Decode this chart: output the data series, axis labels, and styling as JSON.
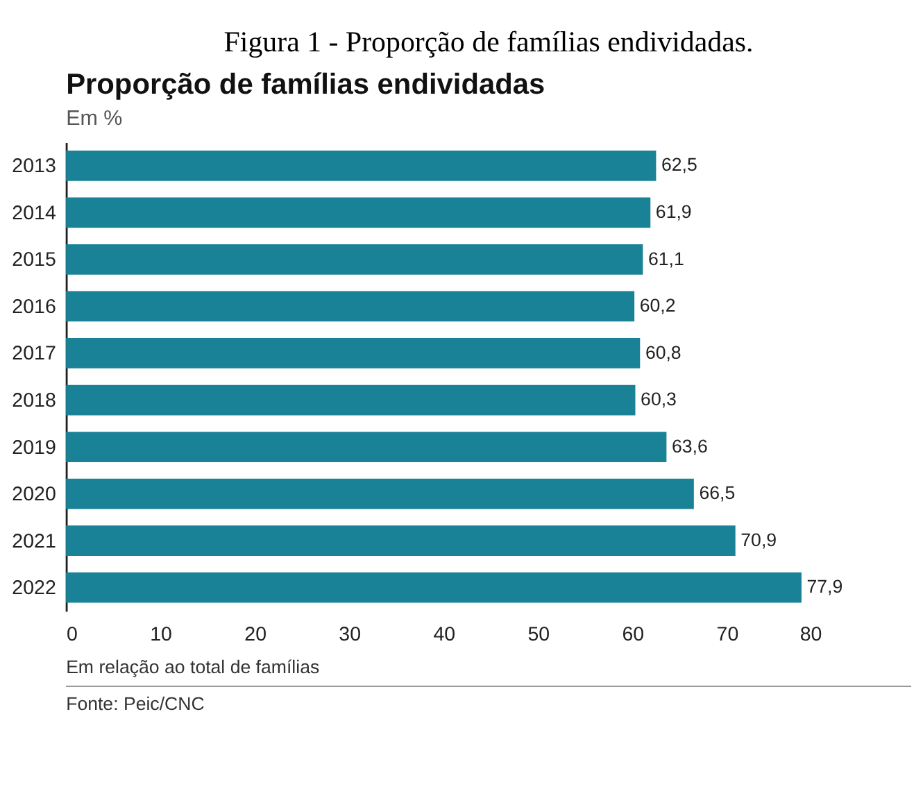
{
  "chart_data": {
    "type": "bar",
    "orientation": "horizontal",
    "title": "Figura 1 - Proporção de famílias endividadas.",
    "subtitle": "Proporção de famílias endividadas",
    "annotations": [
      "Em %",
      "Em relação ao total de famílias",
      "Fonte: Peic/CNC"
    ],
    "categories": [
      "2013",
      "2014",
      "2015",
      "2016",
      "2017",
      "2018",
      "2019",
      "2020",
      "2021",
      "2022"
    ],
    "values": [
      62.5,
      61.9,
      61.1,
      60.2,
      60.8,
      60.3,
      63.6,
      66.5,
      70.9,
      77.9
    ],
    "color": "#1a8296",
    "xlim": [
      0,
      80
    ],
    "xticks": [
      0,
      10,
      20,
      30,
      40,
      50,
      60,
      70,
      80
    ],
    "value_labels": [
      "62,5",
      "61,9",
      "61,1",
      "60,2",
      "60,8",
      "60,3",
      "63,6",
      "66,5",
      "70,9",
      "77,9"
    ],
    "grid": false
  }
}
